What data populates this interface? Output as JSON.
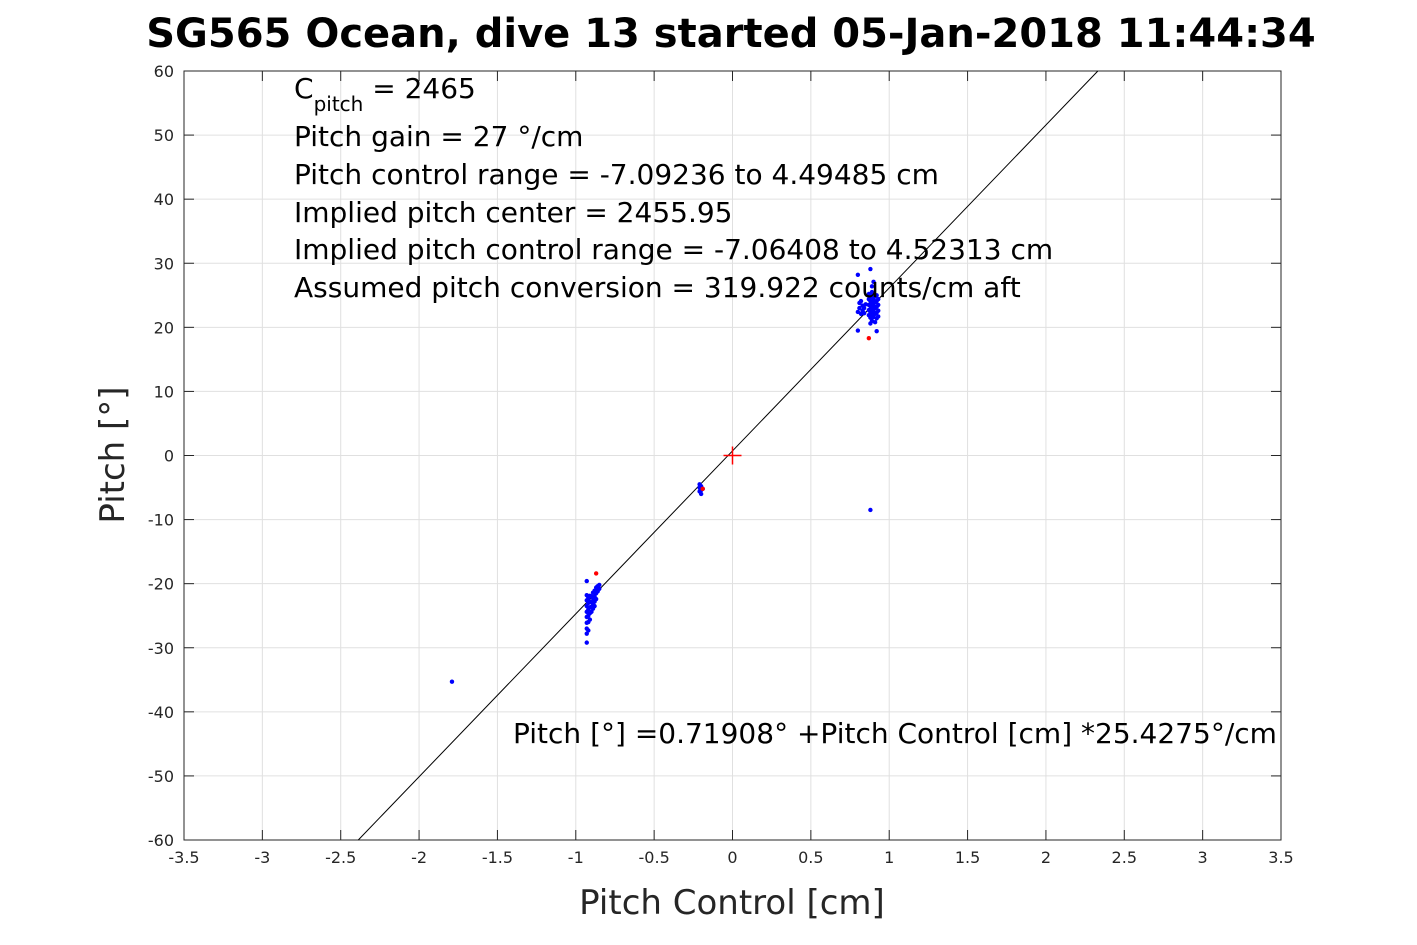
{
  "chart_data": {
    "type": "scatter",
    "title": "SG565 Ocean, dive 13 started 05-Jan-2018 11:44:34",
    "xlabel": "Pitch Control [cm]",
    "ylabel": "Pitch [°]",
    "xlim": [
      -3.5,
      3.5
    ],
    "ylim": [
      -60,
      60
    ],
    "xticks": [
      -3.5,
      -3,
      -2.5,
      -2,
      -1.5,
      -1,
      -0.5,
      0,
      0.5,
      1,
      1.5,
      2,
      2.5,
      3,
      3.5
    ],
    "xtick_labels": [
      "-3.5",
      "-3",
      "-2.5",
      "-2",
      "-1.5",
      "-1",
      "-0.5",
      "0",
      "0.5",
      "1",
      "1.5",
      "2",
      "2.5",
      "3",
      "3.5"
    ],
    "yticks": [
      -60,
      -50,
      -40,
      -30,
      -20,
      -10,
      0,
      10,
      20,
      30,
      40,
      50,
      60
    ],
    "ytick_labels": [
      "-60",
      "-50",
      "-40",
      "-30",
      "-20",
      "-10",
      "0",
      "10",
      "20",
      "30",
      "40",
      "50",
      "60"
    ],
    "grid": true,
    "annotations": {
      "c_pitch_base": "C",
      "c_pitch_sub": "pitch",
      "c_pitch_rest": " = 2465",
      "lines": [
        "Pitch gain = 27 °/cm",
        "Pitch control range = -7.09236 to 4.49485 cm",
        "Implied pitch center = 2455.95",
        "Implied pitch control range = -7.06408 to 4.52313 cm",
        "Assumed pitch conversion = 319.922 counts/cm aft"
      ],
      "fit_equation": "Pitch [°] =0.71908° +Pitch Control [cm] *25.4275°/cm"
    },
    "fit_line": {
      "intercept": 0.71908,
      "slope": 25.4275,
      "color": "#000000"
    },
    "center_marker": {
      "x": 0,
      "y": 0,
      "color": "#ff0000"
    },
    "series": [
      {
        "color": "#0000ff",
        "points": [
          [
            -1.79,
            -35.3
          ],
          [
            -0.93,
            -19.6
          ],
          [
            -0.93,
            -21.8
          ],
          [
            -0.93,
            -22.6
          ],
          [
            -0.93,
            -23.5
          ],
          [
            -0.93,
            -24.4
          ],
          [
            -0.93,
            -25.2
          ],
          [
            -0.93,
            -26.1
          ],
          [
            -0.93,
            -27.0
          ],
          [
            -0.93,
            -27.8
          ],
          [
            -0.93,
            -29.2
          ],
          [
            -0.92,
            -22.2
          ],
          [
            -0.92,
            -23.0
          ],
          [
            -0.92,
            -24.0
          ],
          [
            -0.92,
            -25.0
          ],
          [
            -0.92,
            -26.0
          ],
          [
            -0.92,
            -27.3
          ],
          [
            -0.91,
            -21.9
          ],
          [
            -0.91,
            -22.8
          ],
          [
            -0.91,
            -23.7
          ],
          [
            -0.91,
            -24.6
          ],
          [
            -0.91,
            -25.6
          ],
          [
            -0.9,
            -22.0
          ],
          [
            -0.9,
            -22.9
          ],
          [
            -0.9,
            -23.6
          ],
          [
            -0.9,
            -24.4
          ],
          [
            -0.89,
            -21.4
          ],
          [
            -0.89,
            -22.3
          ],
          [
            -0.89,
            -23.1
          ],
          [
            -0.89,
            -23.9
          ],
          [
            -0.88,
            -21.1
          ],
          [
            -0.88,
            -22.0
          ],
          [
            -0.88,
            -22.8
          ],
          [
            -0.88,
            -23.5
          ],
          [
            -0.87,
            -20.6
          ],
          [
            -0.87,
            -21.5
          ],
          [
            -0.87,
            -22.4
          ],
          [
            -0.86,
            -20.4
          ],
          [
            -0.86,
            -21.2
          ],
          [
            -0.85,
            -20.2
          ],
          [
            -0.85,
            -20.8
          ],
          [
            -0.21,
            -4.5
          ],
          [
            -0.21,
            -5.0
          ],
          [
            -0.21,
            -5.6
          ],
          [
            -0.2,
            -4.8
          ],
          [
            -0.2,
            -5.4
          ],
          [
            -0.2,
            -6.0
          ],
          [
            -0.19,
            -5.2
          ],
          [
            0.8,
            28.2
          ],
          [
            0.8,
            19.5
          ],
          [
            0.8,
            22.4
          ],
          [
            0.81,
            23.0
          ],
          [
            0.81,
            23.8
          ],
          [
            0.82,
            22.1
          ],
          [
            0.82,
            24.1
          ],
          [
            0.83,
            22.6
          ],
          [
            0.83,
            23.4
          ],
          [
            0.84,
            23.0
          ],
          [
            0.84,
            22.2
          ],
          [
            0.85,
            23.6
          ],
          [
            0.87,
            21.9
          ],
          [
            0.87,
            22.7
          ],
          [
            0.87,
            23.5
          ],
          [
            0.87,
            24.4
          ],
          [
            0.87,
            25.2
          ],
          [
            0.88,
            21.5
          ],
          [
            0.88,
            22.4
          ],
          [
            0.88,
            23.3
          ],
          [
            0.88,
            24.1
          ],
          [
            0.88,
            25.0
          ],
          [
            0.88,
            20.6
          ],
          [
            0.88,
            29.1
          ],
          [
            0.88,
            -8.5
          ],
          [
            0.89,
            22.0
          ],
          [
            0.89,
            22.9
          ],
          [
            0.89,
            23.8
          ],
          [
            0.89,
            24.7
          ],
          [
            0.89,
            25.5
          ],
          [
            0.89,
            26.4
          ],
          [
            0.89,
            21.0
          ],
          [
            0.9,
            21.6
          ],
          [
            0.9,
            22.5
          ],
          [
            0.9,
            23.4
          ],
          [
            0.9,
            24.3
          ],
          [
            0.9,
            25.1
          ],
          [
            0.9,
            27.1
          ],
          [
            0.91,
            22.1
          ],
          [
            0.91,
            23.0
          ],
          [
            0.91,
            23.9
          ],
          [
            0.91,
            24.8
          ],
          [
            0.91,
            20.8
          ],
          [
            0.92,
            21.4
          ],
          [
            0.92,
            22.3
          ],
          [
            0.92,
            23.2
          ],
          [
            0.92,
            24.1
          ],
          [
            0.92,
            25.0
          ],
          [
            0.92,
            19.4
          ],
          [
            0.93,
            22.6
          ],
          [
            0.93,
            23.5
          ],
          [
            0.93,
            24.4
          ],
          [
            0.93,
            21.7
          ]
        ]
      },
      {
        "color": "#ff0000",
        "points": [
          [
            -0.87,
            -18.4
          ],
          [
            -0.19,
            -5.2
          ],
          [
            0.87,
            18.3
          ]
        ]
      }
    ]
  }
}
